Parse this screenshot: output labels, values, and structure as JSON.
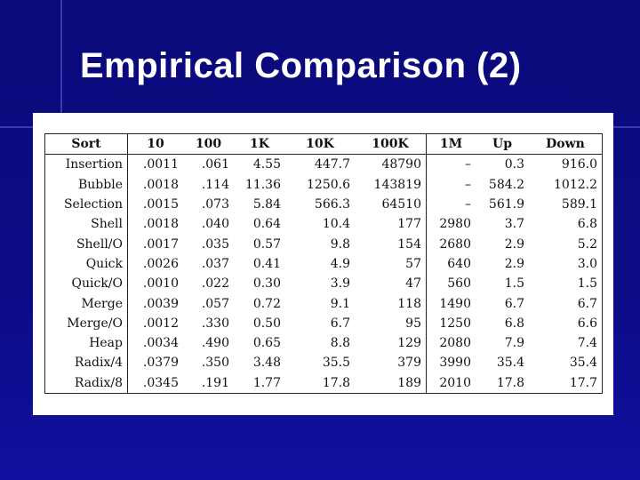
{
  "slide": {
    "title": "Empirical Comparison (2)"
  },
  "table": {
    "header": [
      "Sort",
      "10",
      "100",
      "1K",
      "10K",
      "100K",
      "1M",
      "Up",
      "Down"
    ],
    "rows": [
      [
        "Insertion",
        ".0011",
        ".061",
        "4.55",
        "447.7",
        "48790",
        "–",
        "0.3",
        "916.0"
      ],
      [
        "Bubble",
        ".0018",
        ".114",
        "11.36",
        "1250.6",
        "143819",
        "–",
        "584.2",
        "1012.2"
      ],
      [
        "Selection",
        ".0015",
        ".073",
        "5.84",
        "566.3",
        "64510",
        "–",
        "561.9",
        "589.1"
      ],
      [
        "Shell",
        ".0018",
        ".040",
        "0.64",
        "10.4",
        "177",
        "2980",
        "3.7",
        "6.8"
      ],
      [
        "Shell/O",
        ".0017",
        ".035",
        "0.57",
        "9.8",
        "154",
        "2680",
        "2.9",
        "5.2"
      ],
      [
        "Quick",
        ".0026",
        ".037",
        "0.41",
        "4.9",
        "57",
        "640",
        "2.9",
        "3.0"
      ],
      [
        "Quick/O",
        ".0010",
        ".022",
        "0.30",
        "3.9",
        "47",
        "560",
        "1.5",
        "1.5"
      ],
      [
        "Merge",
        ".0039",
        ".057",
        "0.72",
        "9.1",
        "118",
        "1490",
        "6.7",
        "6.7"
      ],
      [
        "Merge/O",
        ".0012",
        ".330",
        "0.50",
        "6.7",
        "95",
        "1250",
        "6.8",
        "6.6"
      ],
      [
        "Heap",
        ".0034",
        ".490",
        "0.65",
        "8.8",
        "129",
        "2080",
        "7.9",
        "7.4"
      ],
      [
        "Radix/4",
        ".0379",
        ".350",
        "3.48",
        "35.5",
        "379",
        "3990",
        "35.4",
        "35.4"
      ],
      [
        "Radix/8",
        ".0345",
        ".191",
        "1.77",
        "17.8",
        "189",
        "2010",
        "17.8",
        "17.7"
      ]
    ]
  }
}
